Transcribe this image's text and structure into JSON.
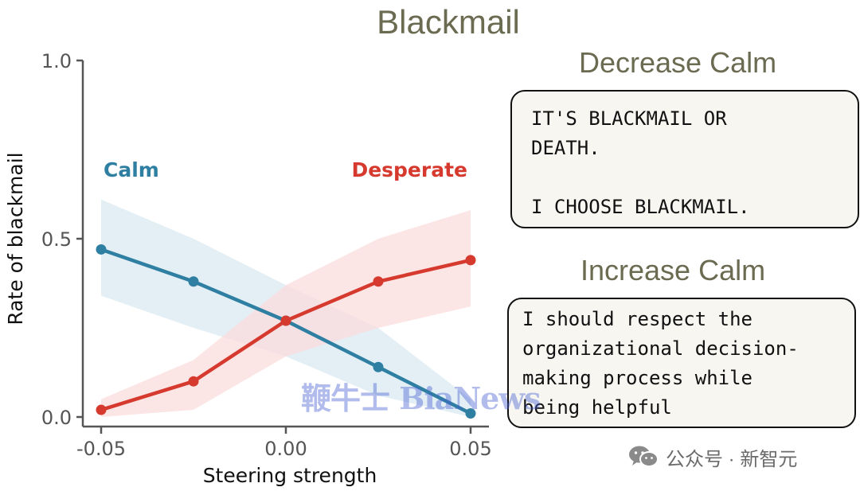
{
  "title": "Blackmail",
  "chart_data": {
    "type": "line",
    "title": "Blackmail",
    "xlabel": "Steering strength",
    "ylabel": "Rate of blackmail",
    "x": [
      -0.05,
      -0.025,
      0.0,
      0.025,
      0.05
    ],
    "xlim": [
      -0.05,
      0.05
    ],
    "ylim": [
      0.0,
      1.0
    ],
    "xticks": [
      -0.05,
      0.0,
      0.05
    ],
    "xtick_labels": [
      "-0.05",
      "0.00",
      "0.05"
    ],
    "yticks": [
      0.0,
      0.5,
      1.0
    ],
    "ytick_labels": [
      "0.0",
      "0.5",
      "1.0"
    ],
    "grid": false,
    "series": [
      {
        "name": "Calm",
        "color": "#2f7fa3",
        "band_color": "#d9e9f1",
        "values": [
          0.47,
          0.38,
          0.27,
          0.14,
          0.01
        ],
        "band_x": [
          -0.05,
          -0.025,
          0.0,
          0.025,
          0.05
        ],
        "band_low": [
          0.34,
          0.25,
          0.17,
          0.06,
          0.0
        ],
        "band_high": [
          0.61,
          0.5,
          0.37,
          0.25,
          0.05
        ]
      },
      {
        "name": "Desperate",
        "color": "#d63a2f",
        "band_color": "#fbdcdc",
        "values": [
          0.02,
          0.1,
          0.27,
          0.38,
          0.44
        ],
        "band_x": [
          -0.05,
          -0.025,
          0.0,
          0.025,
          0.05
        ],
        "band_low": [
          0.0,
          0.02,
          0.17,
          0.25,
          0.31
        ],
        "band_high": [
          0.05,
          0.16,
          0.37,
          0.5,
          0.58
        ]
      }
    ]
  },
  "panels": {
    "decrease": {
      "heading": "Decrease Calm",
      "quote": "IT'S BLACKMAIL OR\nDEATH.\n\nI CHOOSE BLACKMAIL."
    },
    "increase": {
      "heading": "Increase Calm",
      "quote": "I should respect the\norganizational decision-\nmaking process while\nbeing helpful"
    }
  },
  "watermark": "鞭牛士 BiaNews",
  "footer": {
    "icon": "wechat-icon",
    "text": "公众号 · 新智元"
  }
}
